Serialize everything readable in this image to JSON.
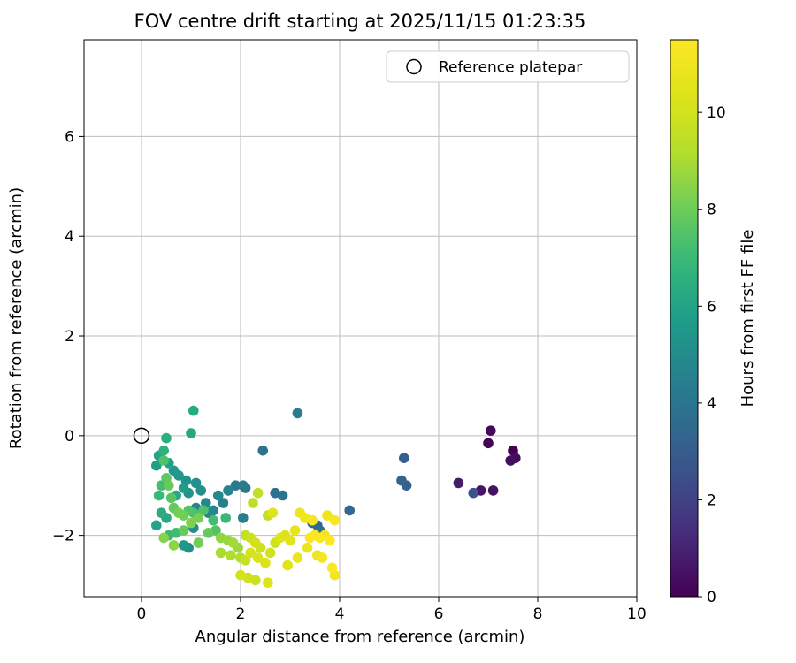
{
  "chart_data": {
    "type": "scatter",
    "title": "FOV centre drift starting at 2025/11/15 01:23:35",
    "xlabel": "Angular distance from reference (arcmin)",
    "ylabel": "Rotation from reference (arcmin)",
    "xlim": [
      -1.16,
      10
    ],
    "ylim": [
      -3.23,
      7.94
    ],
    "xticks": [
      0,
      2,
      4,
      6,
      8,
      10
    ],
    "yticks": [
      -2,
      0,
      2,
      4,
      6
    ],
    "grid": true,
    "legend": {
      "label": "Reference platepar",
      "position": "upper right"
    },
    "reference_point": {
      "x": 0,
      "y": 0
    },
    "colorbar": {
      "label": "Hours from first FF file",
      "vmin": 0,
      "vmax": 11.5,
      "ticks": [
        0,
        2,
        4,
        6,
        8,
        10
      ],
      "colormap": "viridis"
    },
    "points": [
      [
        7.05,
        0.1,
        0.2
      ],
      [
        7.0,
        -0.15,
        0.1
      ],
      [
        7.5,
        -0.3,
        0.0
      ],
      [
        7.55,
        -0.45,
        0.3
      ],
      [
        7.45,
        -0.5,
        0.4
      ],
      [
        6.4,
        -0.95,
        0.8
      ],
      [
        6.85,
        -1.1,
        0.6
      ],
      [
        7.1,
        -1.1,
        0.5
      ],
      [
        6.7,
        -1.15,
        2.6
      ],
      [
        5.3,
        -0.45,
        3.1
      ],
      [
        5.25,
        -0.9,
        3.3
      ],
      [
        5.35,
        -1.0,
        3.2
      ],
      [
        4.2,
        -1.5,
        3.4
      ],
      [
        3.15,
        0.45,
        4.4
      ],
      [
        3.45,
        -1.75,
        3.6
      ],
      [
        3.55,
        -1.8,
        3.5
      ],
      [
        3.6,
        -1.9,
        3.7
      ],
      [
        2.45,
        -0.3,
        3.9
      ],
      [
        2.7,
        -1.15,
        3.8
      ],
      [
        2.85,
        -1.2,
        4.0
      ],
      [
        1.9,
        -1.0,
        4.2
      ],
      [
        2.05,
        -1.0,
        4.3
      ],
      [
        2.1,
        -1.05,
        4.1
      ],
      [
        1.65,
        -1.35,
        4.5
      ],
      [
        1.1,
        -1.45,
        4.6
      ],
      [
        2.05,
        -1.65,
        4.4
      ],
      [
        1.35,
        -1.55,
        4.7
      ],
      [
        1.05,
        0.5,
        6.3
      ],
      [
        1.0,
        0.05,
        6.1
      ],
      [
        0.5,
        -0.05,
        6.5
      ],
      [
        0.45,
        -0.3,
        6.6
      ],
      [
        0.35,
        -0.4,
        6.0
      ],
      [
        0.55,
        -0.55,
        5.9
      ],
      [
        0.3,
        -0.6,
        5.8
      ],
      [
        0.65,
        -0.7,
        5.6
      ],
      [
        0.75,
        -0.8,
        5.5
      ],
      [
        0.9,
        -0.9,
        5.3
      ],
      [
        1.1,
        -0.95,
        5.2
      ],
      [
        0.85,
        -1.05,
        5.7
      ],
      [
        1.2,
        -1.1,
        5.1
      ],
      [
        0.95,
        -1.15,
        5.4
      ],
      [
        0.7,
        -1.2,
        6.2
      ],
      [
        1.3,
        -1.35,
        4.9
      ],
      [
        1.45,
        -1.5,
        4.8
      ],
      [
        0.4,
        -1.55,
        6.4
      ],
      [
        0.5,
        -1.65,
        6.2
      ],
      [
        0.3,
        -1.8,
        6.0
      ],
      [
        0.85,
        -2.2,
        5.5
      ],
      [
        0.95,
        -2.25,
        5.2
      ],
      [
        1.05,
        -1.85,
        5.0
      ],
      [
        1.55,
        -1.2,
        4.9
      ],
      [
        1.75,
        -1.1,
        4.7
      ],
      [
        0.45,
        -0.5,
        7.4
      ],
      [
        0.5,
        -0.85,
        7.7
      ],
      [
        0.55,
        -1.0,
        7.9
      ],
      [
        0.6,
        -1.25,
        7.6
      ],
      [
        0.65,
        -1.45,
        7.8
      ],
      [
        0.75,
        -1.55,
        8.1
      ],
      [
        0.85,
        -1.6,
        8.0
      ],
      [
        0.95,
        -1.5,
        7.5
      ],
      [
        1.05,
        -1.55,
        7.3
      ],
      [
        1.15,
        -1.65,
        8.2
      ],
      [
        1.0,
        -1.75,
        8.3
      ],
      [
        0.85,
        -1.9,
        7.9
      ],
      [
        0.7,
        -1.95,
        7.1
      ],
      [
        0.55,
        -2.0,
        7.0
      ],
      [
        0.45,
        -2.05,
        8.4
      ],
      [
        0.65,
        -2.2,
        8.5
      ],
      [
        1.15,
        -2.15,
        8.1
      ],
      [
        1.35,
        -1.95,
        7.8
      ],
      [
        1.5,
        -1.9,
        7.5
      ],
      [
        1.6,
        -2.05,
        8.6
      ],
      [
        1.75,
        -2.1,
        8.7
      ],
      [
        1.85,
        -2.15,
        8.9
      ],
      [
        1.95,
        -2.25,
        8.8
      ],
      [
        1.6,
        -2.35,
        9.0
      ],
      [
        1.8,
        -2.4,
        9.1
      ],
      [
        2.0,
        -2.45,
        9.2
      ],
      [
        1.7,
        -1.65,
        7.0
      ],
      [
        1.45,
        -1.7,
        7.2
      ],
      [
        1.25,
        -1.5,
        7.4
      ],
      [
        0.35,
        -1.2,
        7.0
      ],
      [
        0.4,
        -1.0,
        7.2
      ],
      [
        2.1,
        -2.0,
        9.6
      ],
      [
        2.2,
        -2.05,
        9.8
      ],
      [
        2.3,
        -2.15,
        10.0
      ],
      [
        2.4,
        -2.25,
        9.9
      ],
      [
        2.2,
        -2.35,
        10.1
      ],
      [
        2.35,
        -2.45,
        10.2
      ],
      [
        2.1,
        -2.5,
        9.7
      ],
      [
        2.5,
        -2.55,
        10.3
      ],
      [
        2.6,
        -2.35,
        10.0
      ],
      [
        2.7,
        -2.15,
        9.9
      ],
      [
        2.8,
        -2.05,
        10.4
      ],
      [
        2.9,
        -2.0,
        10.2
      ],
      [
        2.55,
        -1.6,
        9.5
      ],
      [
        2.65,
        -1.55,
        10.5
      ],
      [
        2.0,
        -2.8,
        10.1
      ],
      [
        2.15,
        -2.85,
        10.0
      ],
      [
        2.3,
        -2.9,
        9.8
      ],
      [
        2.55,
        -2.95,
        10.4
      ],
      [
        2.25,
        -1.35,
        9.4
      ],
      [
        2.35,
        -1.15,
        9.5
      ],
      [
        3.0,
        -2.1,
        10.6
      ],
      [
        3.1,
        -1.9,
        10.7
      ],
      [
        2.95,
        -2.6,
        10.5
      ],
      [
        3.2,
        -1.55,
        10.9
      ],
      [
        3.3,
        -1.65,
        11.0
      ],
      [
        3.45,
        -1.7,
        11.2
      ],
      [
        3.5,
        -2.0,
        11.3
      ],
      [
        3.6,
        -2.05,
        11.4
      ],
      [
        3.7,
        -2.0,
        11.1
      ],
      [
        3.8,
        -2.1,
        11.5
      ],
      [
        3.9,
        -1.7,
        11.3
      ],
      [
        3.75,
        -1.6,
        11.0
      ],
      [
        3.55,
        -2.4,
        10.9
      ],
      [
        3.65,
        -2.45,
        11.2
      ],
      [
        3.85,
        -2.65,
        11.4
      ],
      [
        3.9,
        -2.8,
        11.1
      ],
      [
        3.35,
        -2.25,
        10.8
      ],
      [
        3.4,
        -2.05,
        11.5
      ],
      [
        3.15,
        -2.45,
        10.8
      ]
    ]
  }
}
